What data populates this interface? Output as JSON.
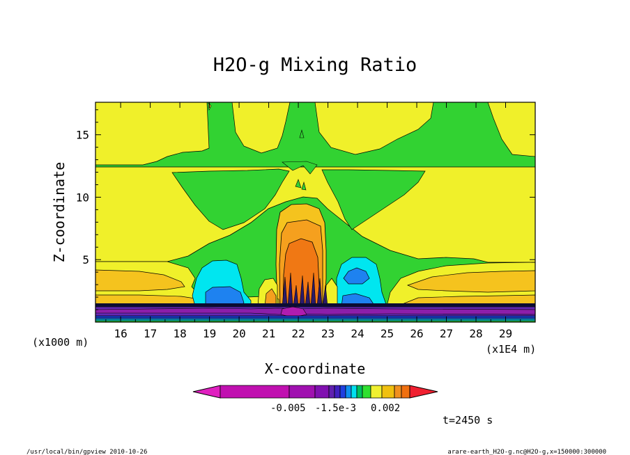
{
  "chart_data": {
    "type": "contour",
    "title": "H2O-g Mixing Ratio",
    "xlabel": "X-coordinate",
    "ylabel": "Z-coordinate",
    "x_unit_left": "(x1000 m)",
    "x_unit_right": "(x1E4 m)",
    "xlim": [
      15.15,
      30.0
    ],
    "ylim": [
      0,
      17.6
    ],
    "xticks": [
      16,
      17,
      18,
      19,
      20,
      21,
      22,
      23,
      24,
      25,
      26,
      27,
      28,
      29
    ],
    "yticks": [
      5,
      10,
      15
    ],
    "time_label": "t=2450 s",
    "colorbar": {
      "tick_labels": [
        "-0.005",
        "-1.5e-3",
        "0.002"
      ],
      "colors": [
        "#e020c0",
        "#c010b0",
        "#a010b0",
        "#8010b0",
        "#6020b0",
        "#4020c0",
        "#2040e0",
        "#1090f0",
        "#00e0f0",
        "#00c060",
        "#30e030",
        "#f0f030",
        "#f0c010",
        "#f09020",
        "#f07010",
        "#f02030"
      ]
    },
    "contour_levels_colors": {
      "green": "#32d232",
      "yellow": "#f0f02a",
      "gold": "#f5c31e",
      "orange_light": "#f5a01e",
      "orange": "#f07814",
      "cyan": "#00e6f0",
      "blue": "#1e82f0",
      "darkblue": "#1e3cd2",
      "purple": "#6428b4",
      "violet": "#8c1eaa"
    }
  },
  "footer": {
    "left": "/usr/local/bin/gpview  2010-10-26",
    "right": "arare-earth_H2O-g.nc@H2O-g,x=150000:300000"
  }
}
